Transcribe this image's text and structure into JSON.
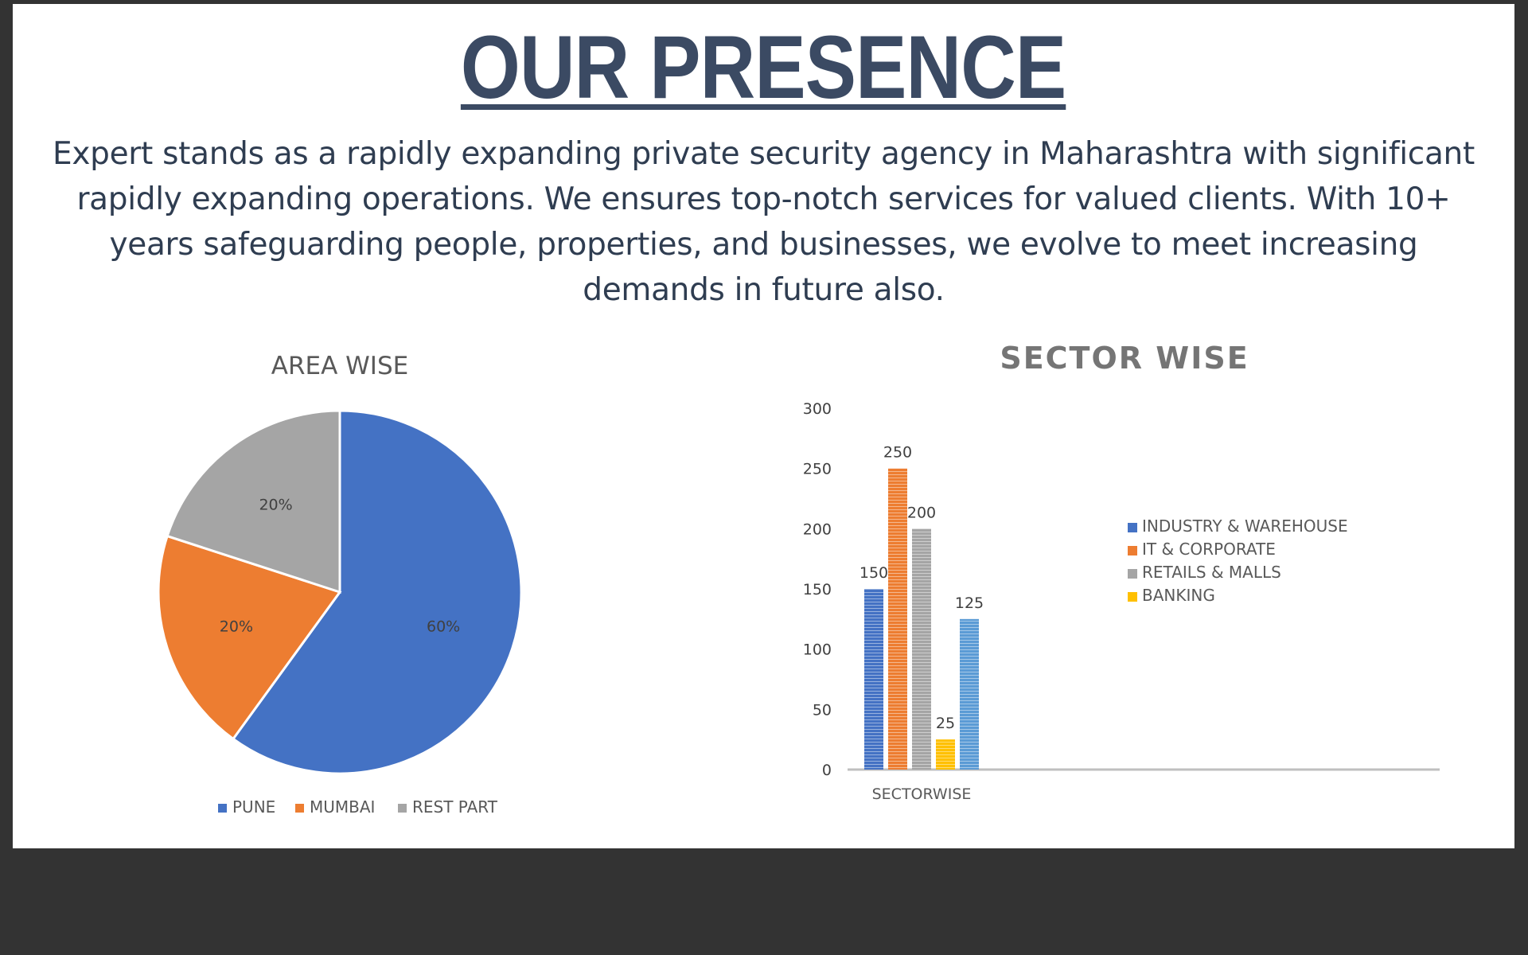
{
  "page": {
    "title": "OUR PRESENCE",
    "intro": "Expert stands as a rapidly expanding private security agency in Maharashtra with significant rapidly expanding operations. We ensures top-notch services for valued clients. With 10+ years safeguarding people, properties, and businesses, we evolve to meet increasing demands in future also."
  },
  "colors": {
    "background": "#333333",
    "slide": "#ffffff",
    "title": "#3b4a63",
    "blue": "#4472c4",
    "orange": "#ed7d31",
    "gray": "#a5a5a5",
    "gold": "#ffc000",
    "lightblue": "#5b9bd5"
  },
  "chart_data": [
    {
      "type": "pie",
      "title": "AREA WISE",
      "labels": [
        "PUNE",
        "MUMBAI",
        "REST PART"
      ],
      "values": [
        60,
        20,
        20
      ],
      "data_labels": [
        "60%",
        "20%",
        "20%"
      ],
      "colors": [
        "#4472c4",
        "#ed7d31",
        "#a5a5a5"
      ],
      "legend": "bottom"
    },
    {
      "type": "bar",
      "title": "SECTOR WISE",
      "categories": [
        "SECTORWISE"
      ],
      "series": [
        {
          "name": "INDUSTRY & WAREHOUSE",
          "values": [
            150
          ],
          "color": "#4472c4"
        },
        {
          "name": "IT & CORPORATE",
          "values": [
            250
          ],
          "color": "#ed7d31"
        },
        {
          "name": "RETAILS & MALLS",
          "values": [
            200
          ],
          "color": "#a5a5a5"
        },
        {
          "name": "BANKING",
          "values": [
            25
          ],
          "color": "#ffc000"
        },
        {
          "name": "",
          "values": [
            125
          ],
          "color": "#5b9bd5"
        }
      ],
      "yticks": [
        "0",
        "50",
        "100",
        "150",
        "200",
        "250",
        "300"
      ],
      "ylim": [
        0,
        300
      ],
      "grid": false,
      "legend": "right",
      "bar_pattern": "horizontal-stripes"
    }
  ]
}
